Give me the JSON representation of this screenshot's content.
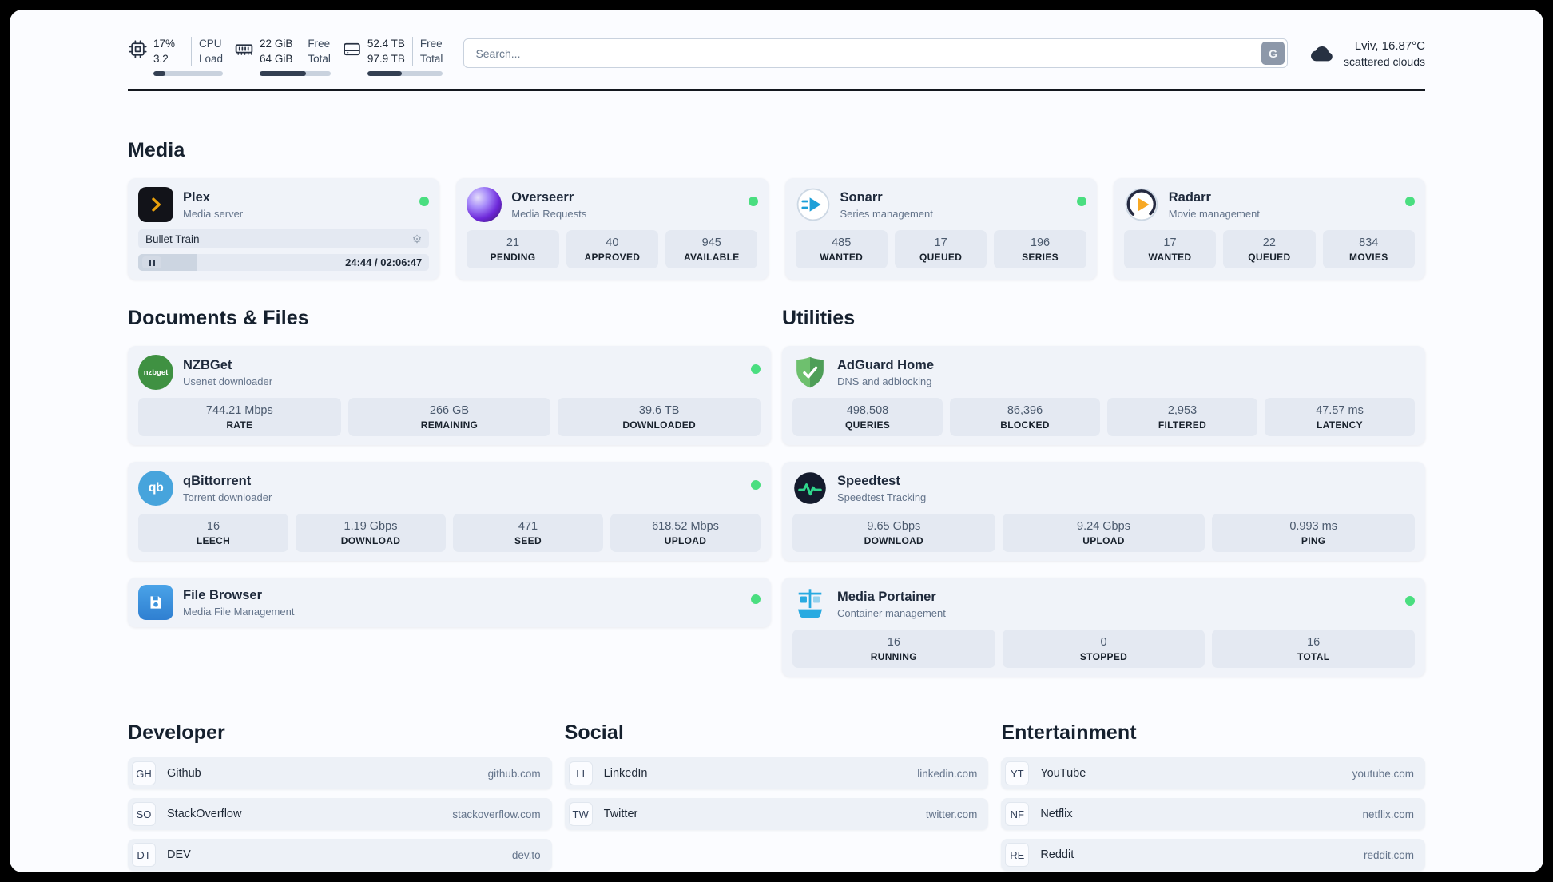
{
  "header": {
    "cpu": {
      "usage": "17%",
      "load": "3.2",
      "label_top": "CPU",
      "label_bottom": "Load",
      "progress_pct": 17
    },
    "memory": {
      "free": "22 GiB",
      "total": "64 GiB",
      "label_top": "Free",
      "label_bottom": "Total",
      "progress_pct": 65
    },
    "disk": {
      "free": "52.4 TB",
      "total": "97.9 TB",
      "label_top": "Free",
      "label_bottom": "Total",
      "progress_pct": 46
    },
    "search": {
      "placeholder": "Search...",
      "engine_button": "G"
    },
    "weather": {
      "location": "Lviv, 16.87°C",
      "condition": "scattered clouds"
    }
  },
  "sections": {
    "media": "Media",
    "documents": "Documents & Files",
    "utilities": "Utilities",
    "developer": "Developer",
    "social": "Social",
    "entertainment": "Entertainment"
  },
  "icons": {
    "settings_gear": "⚙"
  },
  "apps": {
    "plex": {
      "name": "Plex",
      "subtitle": "Media server",
      "now_playing": "Bullet Train",
      "elapsed_total": "24:44 / 02:06:47",
      "progress_pct": 20
    },
    "overseerr": {
      "name": "Overseerr",
      "subtitle": "Media Requests",
      "stats": [
        {
          "value": "21",
          "label": "PENDING"
        },
        {
          "value": "40",
          "label": "APPROVED"
        },
        {
          "value": "945",
          "label": "AVAILABLE"
        }
      ]
    },
    "sonarr": {
      "name": "Sonarr",
      "subtitle": "Series management",
      "stats": [
        {
          "value": "485",
          "label": "WANTED"
        },
        {
          "value": "17",
          "label": "QUEUED"
        },
        {
          "value": "196",
          "label": "SERIES"
        }
      ]
    },
    "radarr": {
      "name": "Radarr",
      "subtitle": "Movie management",
      "stats": [
        {
          "value": "17",
          "label": "WANTED"
        },
        {
          "value": "22",
          "label": "QUEUED"
        },
        {
          "value": "834",
          "label": "MOVIES"
        }
      ]
    },
    "nzbget": {
      "name": "NZBGet",
      "subtitle": "Usenet downloader",
      "icon_text": "nzbget",
      "stats": [
        {
          "value": "744.21 Mbps",
          "label": "RATE"
        },
        {
          "value": "266 GB",
          "label": "REMAINING"
        },
        {
          "value": "39.6 TB",
          "label": "DOWNLOADED"
        }
      ]
    },
    "qbittorrent": {
      "name": "qBittorrent",
      "subtitle": "Torrent downloader",
      "icon_text": "qb",
      "stats": [
        {
          "value": "16",
          "label": "LEECH"
        },
        {
          "value": "1.19 Gbps",
          "label": "DOWNLOAD"
        },
        {
          "value": "471",
          "label": "SEED"
        },
        {
          "value": "618.52 Mbps",
          "label": "UPLOAD"
        }
      ]
    },
    "filebrowser": {
      "name": "File Browser",
      "subtitle": "Media File Management"
    },
    "adguard": {
      "name": "AdGuard Home",
      "subtitle": "DNS and adblocking",
      "stats": [
        {
          "value": "498,508",
          "label": "QUERIES"
        },
        {
          "value": "86,396",
          "label": "BLOCKED"
        },
        {
          "value": "2,953",
          "label": "FILTERED"
        },
        {
          "value": "47.57 ms",
          "label": "LATENCY"
        }
      ]
    },
    "speedtest": {
      "name": "Speedtest",
      "subtitle": "Speedtest Tracking",
      "stats": [
        {
          "value": "9.65 Gbps",
          "label": "DOWNLOAD"
        },
        {
          "value": "9.24 Gbps",
          "label": "UPLOAD"
        },
        {
          "value": "0.993 ms",
          "label": "PING"
        }
      ]
    },
    "portainer": {
      "name": "Media Portainer",
      "subtitle": "Container management",
      "stats": [
        {
          "value": "16",
          "label": "RUNNING"
        },
        {
          "value": "0",
          "label": "STOPPED"
        },
        {
          "value": "16",
          "label": "TOTAL"
        }
      ]
    }
  },
  "bookmarks": {
    "developer": [
      {
        "abbr": "GH",
        "name": "Github",
        "url": "github.com"
      },
      {
        "abbr": "SO",
        "name": "StackOverflow",
        "url": "stackoverflow.com"
      },
      {
        "abbr": "DT",
        "name": "DEV",
        "url": "dev.to"
      }
    ],
    "social": [
      {
        "abbr": "LI",
        "name": "LinkedIn",
        "url": "linkedin.com"
      },
      {
        "abbr": "TW",
        "name": "Twitter",
        "url": "twitter.com"
      }
    ],
    "entertainment": [
      {
        "abbr": "YT",
        "name": "YouTube",
        "url": "youtube.com"
      },
      {
        "abbr": "NF",
        "name": "Netflix",
        "url": "netflix.com"
      },
      {
        "abbr": "RE",
        "name": "Reddit",
        "url": "reddit.com"
      }
    ]
  },
  "colors": {
    "status_online": "#4ade80"
  }
}
